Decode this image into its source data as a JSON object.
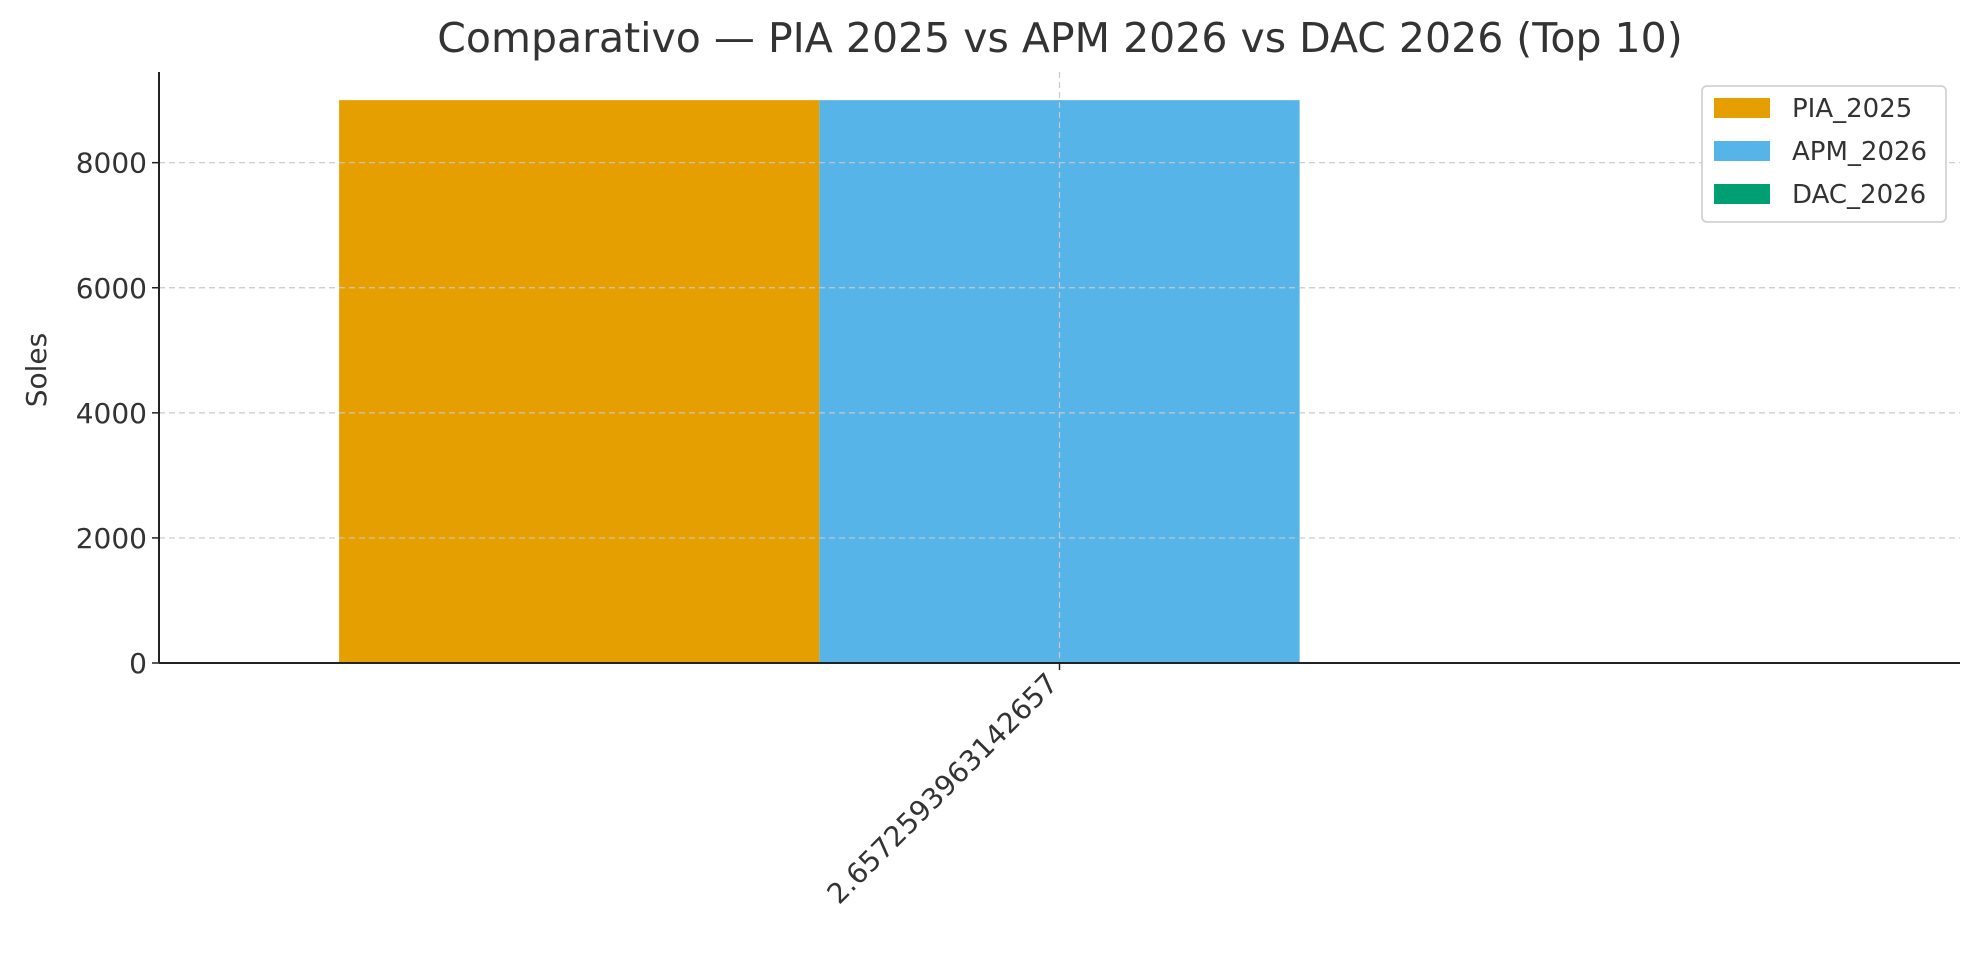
{
  "chart_data": {
    "type": "bar",
    "title": "Comparativo — PIA 2025 vs APM 2026 vs DAC 2026 (Top 10)",
    "xlabel": "",
    "ylabel": "Soles",
    "categories": [
      "2.657259396314265​7"
    ],
    "series": [
      {
        "name": "PIA_2025",
        "color": "#E69F00",
        "values": [
          9000
        ]
      },
      {
        "name": "APM_2026",
        "color": "#56B4E9",
        "values": [
          9000
        ]
      },
      {
        "name": "DAC_2026",
        "color": "#009E73",
        "values": [
          0
        ]
      }
    ],
    "ylim": [
      0,
      9450
    ],
    "yticks": [
      0,
      2000,
      4000,
      6000,
      8000
    ],
    "grid": true,
    "legend_position": "top-right"
  }
}
